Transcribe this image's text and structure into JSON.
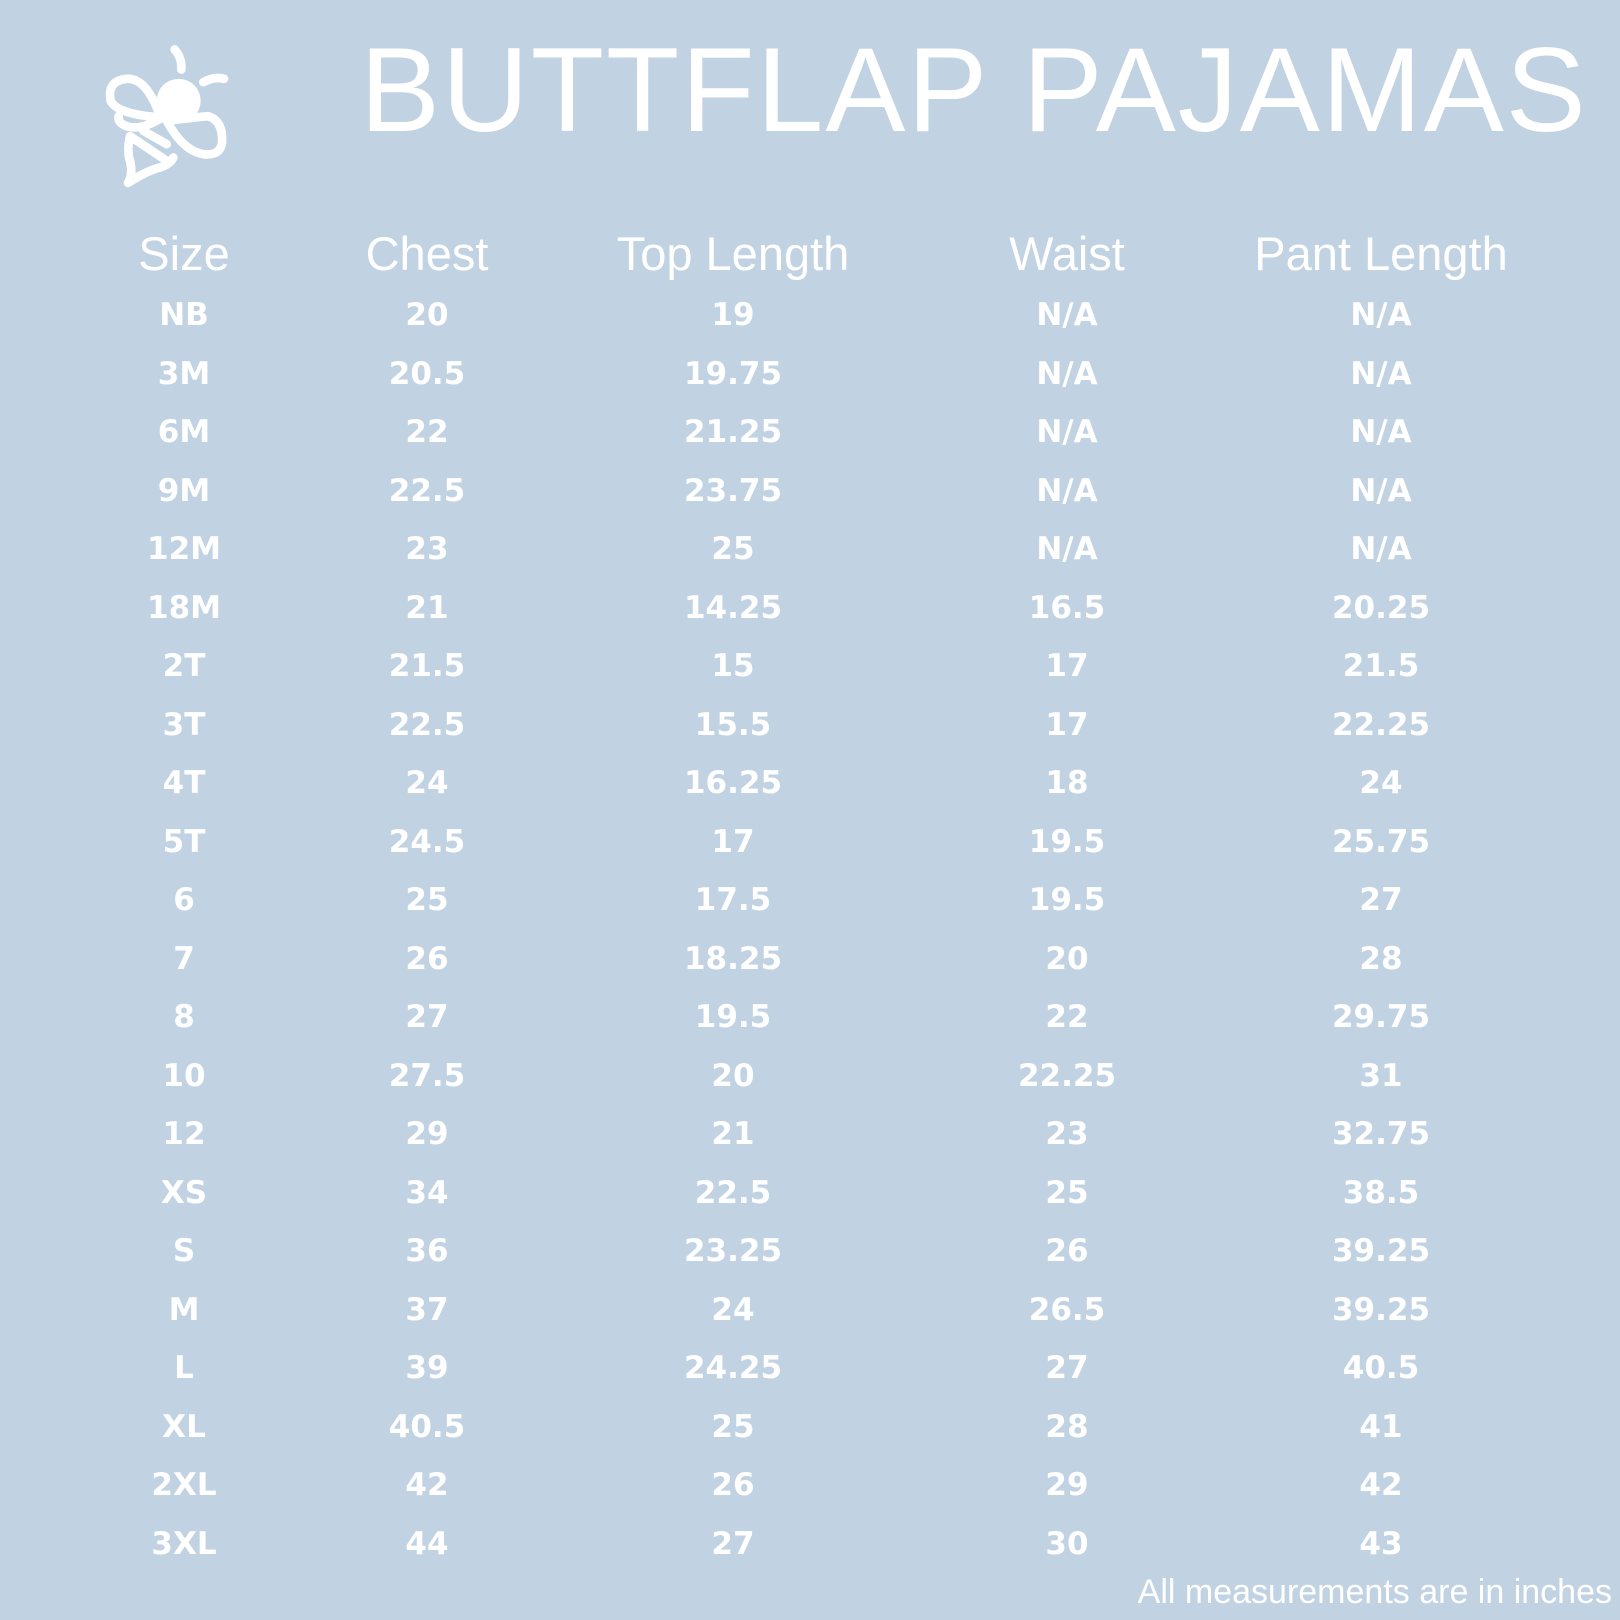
{
  "title": "BUTTFLAP PAJAMAS",
  "logo": {
    "icon": "bee-icon",
    "color": "#ffffff"
  },
  "background_color": "#c1d2e3",
  "table": {
    "headers": [
      "Size",
      "Chest",
      "Top Length",
      "Waist",
      "Pant Length"
    ],
    "rows": [
      [
        "NB",
        "20",
        "19",
        "N/A",
        "N/A"
      ],
      [
        "3M",
        "20.5",
        "19.75",
        "N/A",
        "N/A"
      ],
      [
        "6M",
        "22",
        "21.25",
        "N/A",
        "N/A"
      ],
      [
        "9M",
        "22.5",
        "23.75",
        "N/A",
        "N/A"
      ],
      [
        "12M",
        "23",
        "25",
        "N/A",
        "N/A"
      ],
      [
        "18M",
        "21",
        "14.25",
        "16.5",
        "20.25"
      ],
      [
        "2T",
        "21.5",
        "15",
        "17",
        "21.5"
      ],
      [
        "3T",
        "22.5",
        "15.5",
        "17",
        "22.25"
      ],
      [
        "4T",
        "24",
        "16.25",
        "18",
        "24"
      ],
      [
        "5T",
        "24.5",
        "17",
        "19.5",
        "25.75"
      ],
      [
        "6",
        "25",
        "17.5",
        "19.5",
        "27"
      ],
      [
        "7",
        "26",
        "18.25",
        "20",
        "28"
      ],
      [
        "8",
        "27",
        "19.5",
        "22",
        "29.75"
      ],
      [
        "10",
        "27.5",
        "20",
        "22.25",
        "31"
      ],
      [
        "12",
        "29",
        "21",
        "23",
        "32.75"
      ],
      [
        "XS",
        "34",
        "22.5",
        "25",
        "38.5"
      ],
      [
        "S",
        "36",
        "23.25",
        "26",
        "39.25"
      ],
      [
        "M",
        "37",
        "24",
        "26.5",
        "39.25"
      ],
      [
        "L",
        "39",
        "24.25",
        "27",
        "40.5"
      ],
      [
        "XL",
        "40.5",
        "25",
        "28",
        "41"
      ],
      [
        "2XL",
        "42",
        "26",
        "29",
        "42"
      ],
      [
        "3XL",
        "44",
        "27",
        "30",
        "43"
      ]
    ]
  },
  "footer": "All measurements are in inches"
}
